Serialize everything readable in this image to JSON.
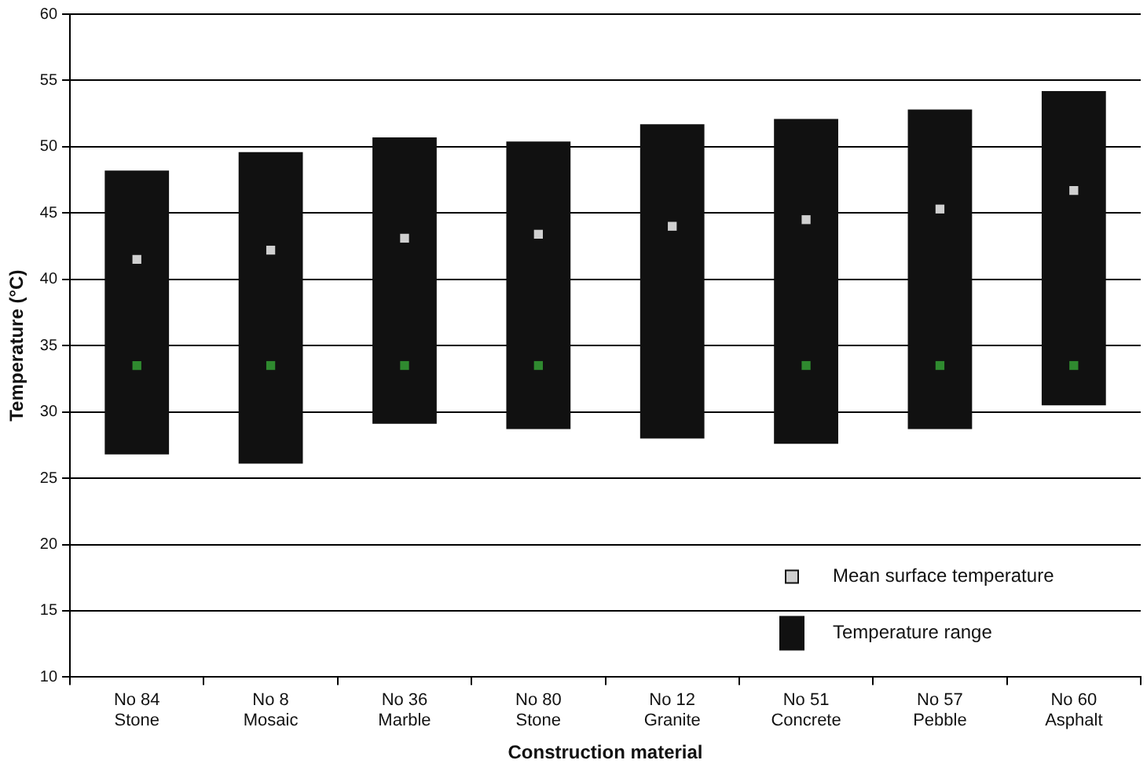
{
  "chart_data": {
    "type": "bar",
    "xlabel": "Construction material",
    "ylabel": "Temperature (°C)",
    "categories": [
      "No 84\nStone",
      "No 8\nMosaic",
      "No 36\nMarble",
      "No 80\nStone",
      "No 12\nGranite",
      "No 51\nConcrete",
      "No 57\nPebble",
      "No 60\nAsphalt"
    ],
    "series": [
      {
        "name": "Mean surface temperature",
        "type": "scatter",
        "marker": "square",
        "color": "#d0d0d0",
        "values": [
          41.5,
          42.2,
          43.1,
          43.4,
          44.0,
          44.5,
          45.3,
          46.7
        ]
      },
      {
        "name": "Temperature range",
        "color": "#111111",
        "base": [
          26.8,
          26.1,
          29.1,
          28.7,
          28.0,
          27.6,
          28.7,
          30.5
        ],
        "values": [
          21.4,
          23.5,
          21.6,
          21.7,
          23.7,
          24.5,
          24.1,
          23.7
        ]
      },
      {
        "type": "scatter",
        "marker": "square",
        "color": "#2f8a2f",
        "values": [
          33.5,
          33.5,
          33.5,
          33.5,
          null,
          33.5,
          33.5,
          33.5
        ]
      }
    ],
    "ylim": [
      10,
      60
    ],
    "yticks": [
      10,
      15,
      20,
      25,
      30,
      35,
      40,
      45,
      50,
      55,
      60
    ],
    "grid": "y",
    "legend": "bottom right"
  }
}
